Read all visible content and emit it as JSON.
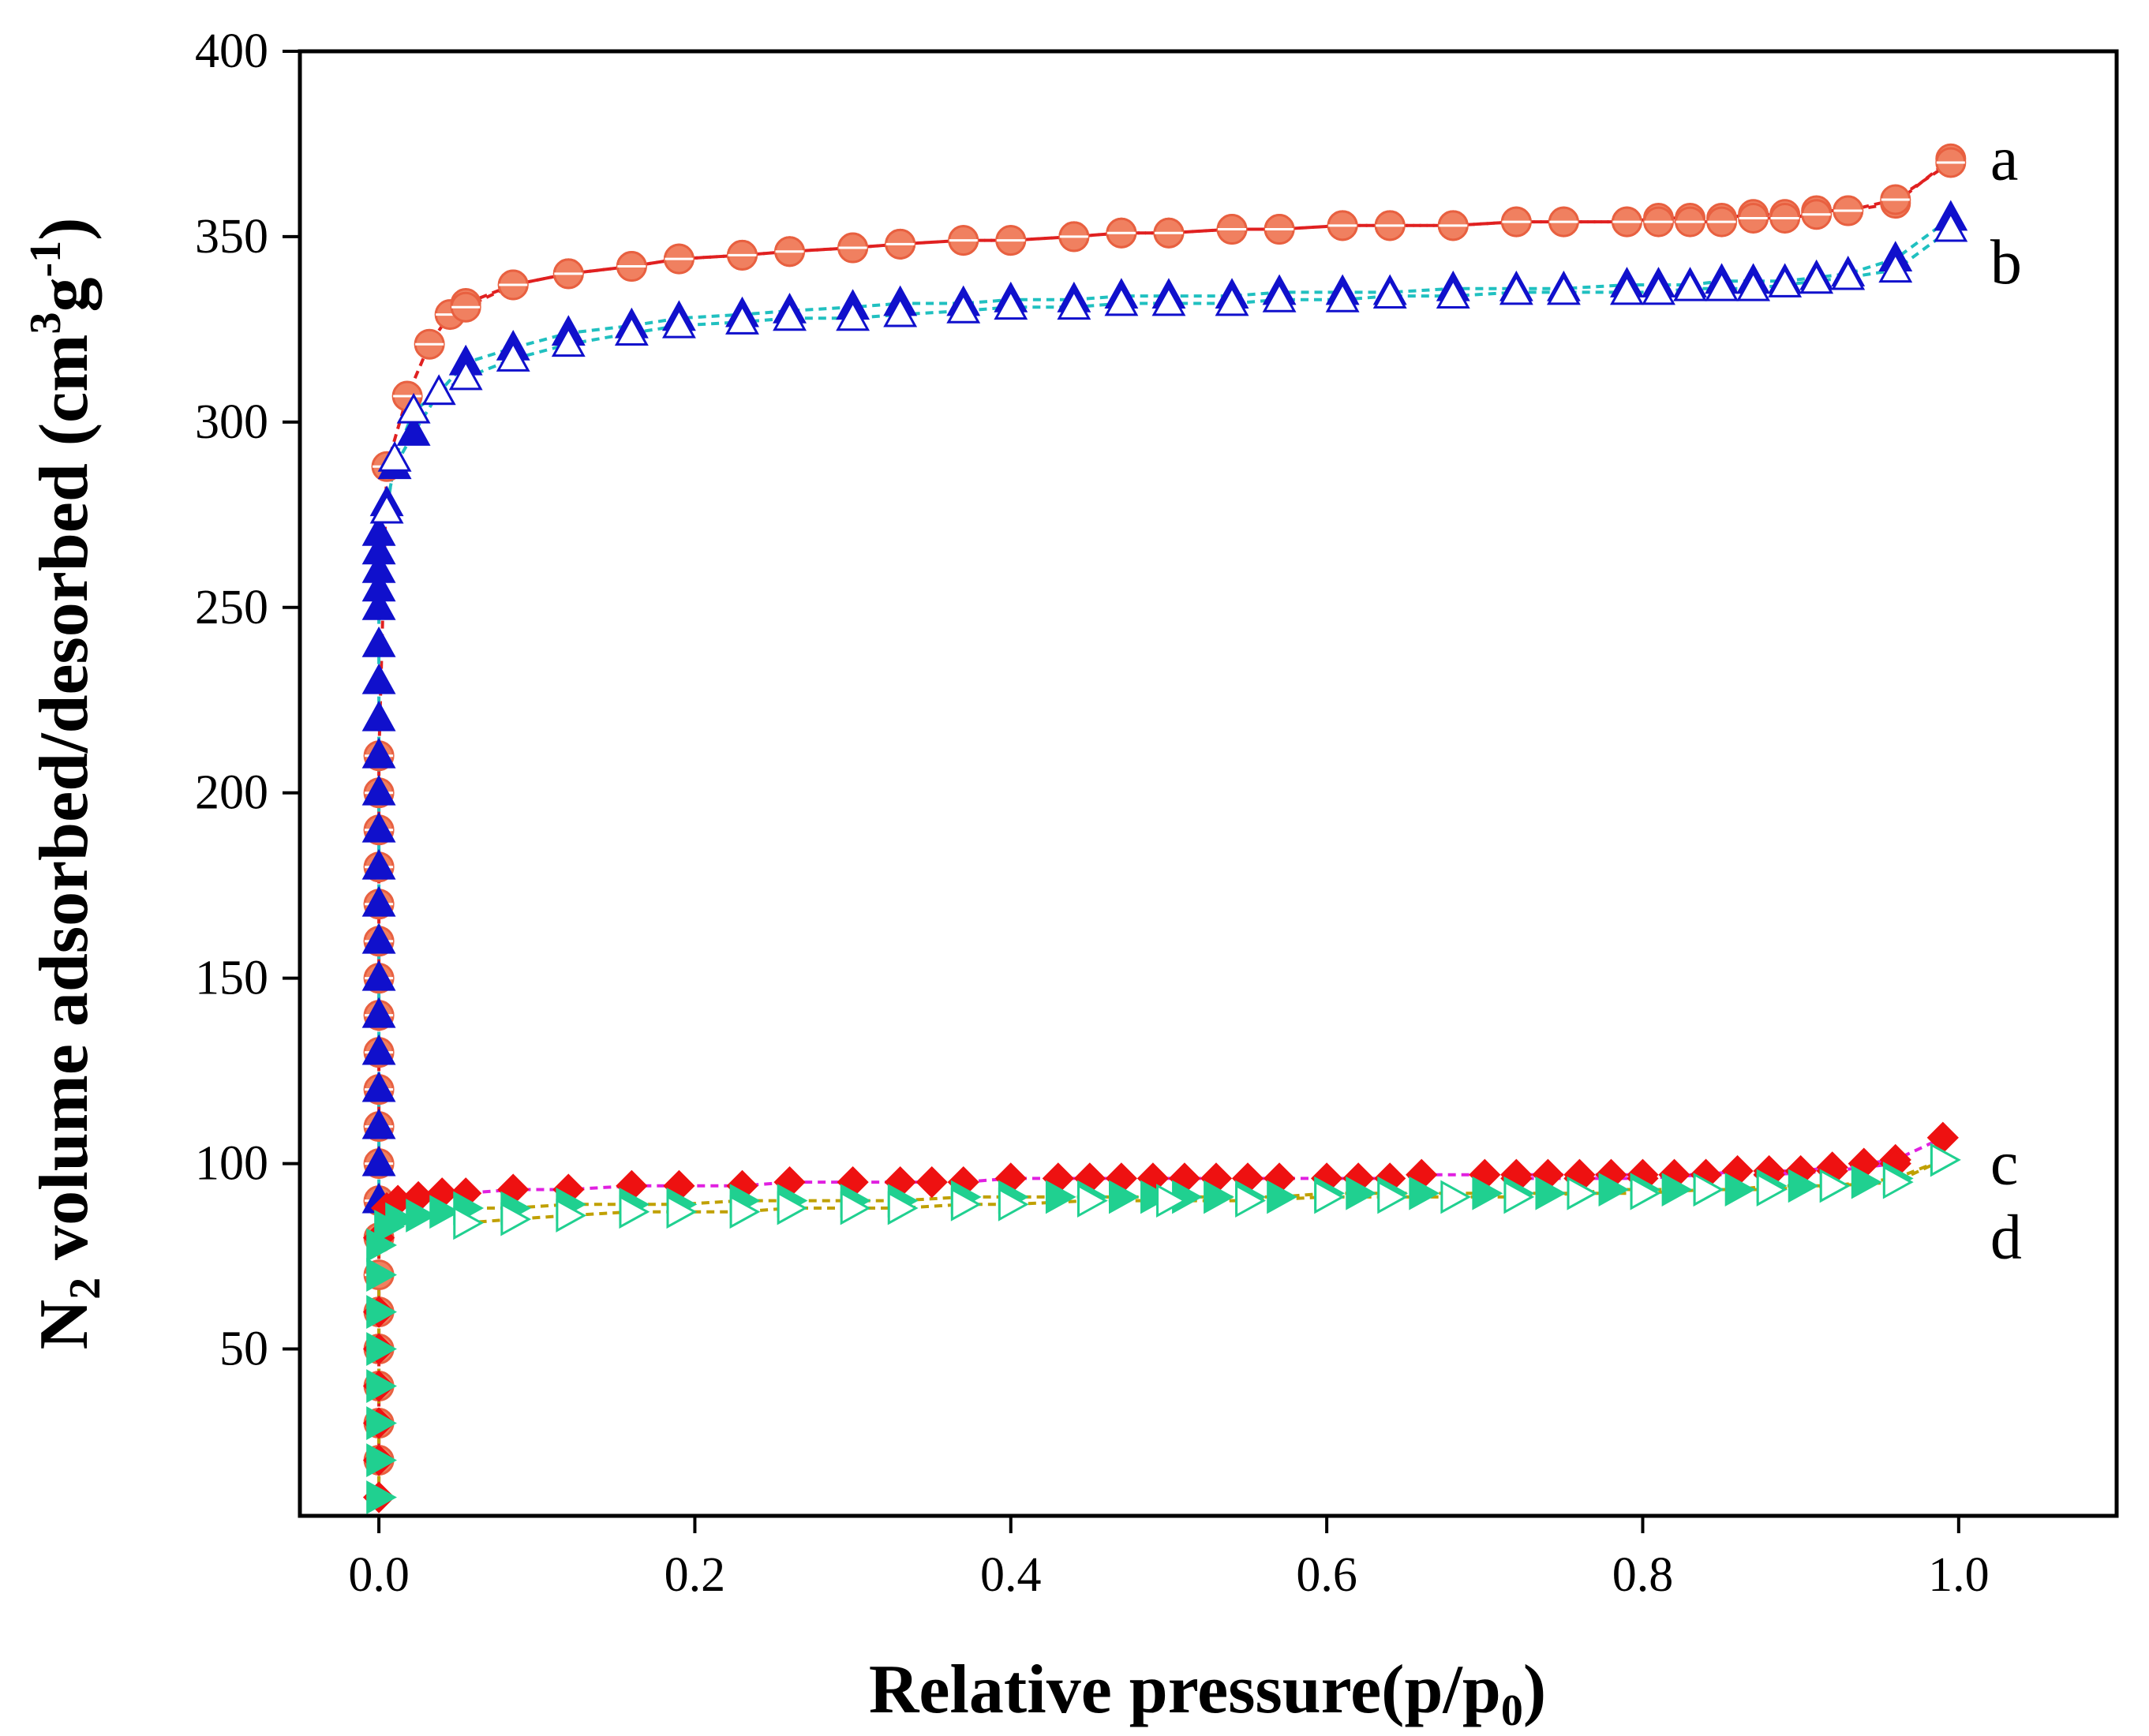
{
  "chart_data": {
    "type": "scatter",
    "title": "",
    "xlabel": {
      "main": "Relative pressure(p/p",
      "sub": "0",
      "end": ")"
    },
    "ylabel": {
      "n": "N",
      "n_sub": "2",
      "main": " volume adsorbed/desorbed (cm",
      "sup1": "3",
      "g": "g",
      "sup2": "-1",
      "end": ")"
    },
    "xlim": [
      -0.05,
      1.1
    ],
    "ylim": [
      5,
      400
    ],
    "xticks": [
      0.0,
      0.2,
      0.4,
      0.6,
      0.8,
      1.0
    ],
    "xtick_labels": [
      "0.0",
      "0.2",
      "0.4",
      "0.6",
      "0.8",
      "1.0"
    ],
    "yticks": [
      50,
      100,
      150,
      200,
      250,
      300,
      350,
      400
    ],
    "ytick_labels": [
      "50",
      "100",
      "150",
      "200",
      "250",
      "300",
      "350",
      "400"
    ],
    "series": [
      {
        "name": "a",
        "marker": "circle",
        "adsorption_color": "#f08060",
        "desorption_color": "#f08060",
        "line_color": "#e02020",
        "label_position": [
          1.02,
          371
        ],
        "adsorption": {
          "x": [
            0.0,
            0.0,
            0.0,
            0.0,
            0.0,
            0.0,
            0.0,
            0.0,
            0.0,
            0.0,
            0.0,
            0.0,
            0.0,
            0.0,
            0.0,
            0.0,
            0.0,
            0.0,
            0.0,
            0.0,
            0.005,
            0.018,
            0.032,
            0.045,
            0.055,
            0.085,
            0.12,
            0.16,
            0.19,
            0.23,
            0.26,
            0.3,
            0.33,
            0.37,
            0.4,
            0.44,
            0.47,
            0.5,
            0.54,
            0.57,
            0.61,
            0.64,
            0.68,
            0.72,
            0.75,
            0.79,
            0.81,
            0.83,
            0.85,
            0.87,
            0.89,
            0.91,
            0.93,
            0.96,
            0.995
          ],
          "y": [
            20,
            30,
            40,
            50,
            60,
            70,
            80,
            90,
            100,
            110,
            120,
            130,
            140,
            150,
            160,
            170,
            180,
            190,
            200,
            210,
            288,
            307,
            321,
            329,
            332,
            337,
            340,
            342,
            344,
            345,
            346,
            347,
            348,
            349,
            349,
            350,
            351,
            351,
            352,
            352,
            353,
            353,
            353,
            354,
            354,
            354,
            355,
            355,
            355,
            356,
            356,
            357,
            357,
            359,
            371
          ]
        },
        "desorption": {
          "x": [
            0.995,
            0.96,
            0.93,
            0.91,
            0.89,
            0.87,
            0.85,
            0.83,
            0.81,
            0.79,
            0.75,
            0.72,
            0.68,
            0.64,
            0.61,
            0.57,
            0.54,
            0.5,
            0.47,
            0.44,
            0.4,
            0.37,
            0.33,
            0.3,
            0.26,
            0.23,
            0.19,
            0.16,
            0.12,
            0.085,
            0.055
          ],
          "y": [
            370,
            360,
            357,
            356,
            355,
            355,
            354,
            354,
            354,
            354,
            354,
            354,
            353,
            353,
            353,
            352,
            352,
            351,
            351,
            350,
            349,
            349,
            348,
            347,
            346,
            345,
            344,
            342,
            340,
            337,
            331
          ]
        }
      },
      {
        "name": "b",
        "marker": "triangle-up",
        "adsorption_color": "#1010cc",
        "desorption_color": "#ffffff",
        "desorption_edge": "#1010cc",
        "line_color": "#20c0c0",
        "label_position": [
          1.02,
          343
        ],
        "adsorption": {
          "x": [
            0.0,
            0.0,
            0.0,
            0.0,
            0.0,
            0.0,
            0.0,
            0.0,
            0.0,
            0.0,
            0.0,
            0.0,
            0.0,
            0.0,
            0.0,
            0.0,
            0.0,
            0.0,
            0.0,
            0.0,
            0.0,
            0.005,
            0.01,
            0.022,
            0.038,
            0.055,
            0.085,
            0.12,
            0.16,
            0.19,
            0.23,
            0.26,
            0.3,
            0.33,
            0.37,
            0.4,
            0.44,
            0.47,
            0.5,
            0.54,
            0.57,
            0.61,
            0.64,
            0.68,
            0.72,
            0.75,
            0.79,
            0.81,
            0.83,
            0.85,
            0.87,
            0.89,
            0.91,
            0.93,
            0.96,
            0.995
          ],
          "y": [
            90,
            100,
            110,
            120,
            130,
            140,
            150,
            160,
            170,
            180,
            190,
            200,
            210,
            220,
            230,
            240,
            250,
            255,
            260,
            265,
            270,
            278,
            288,
            297,
            308,
            316,
            320,
            324,
            326,
            328,
            329,
            330,
            331,
            332,
            332,
            333,
            333,
            334,
            334,
            334,
            335,
            335,
            335,
            336,
            336,
            336,
            337,
            337,
            337,
            338,
            338,
            338,
            339,
            340,
            344,
            355
          ]
        },
        "desorption": {
          "x": [
            0.995,
            0.96,
            0.93,
            0.91,
            0.89,
            0.87,
            0.85,
            0.83,
            0.81,
            0.79,
            0.75,
            0.72,
            0.68,
            0.64,
            0.61,
            0.57,
            0.54,
            0.5,
            0.47,
            0.44,
            0.4,
            0.37,
            0.33,
            0.3,
            0.26,
            0.23,
            0.19,
            0.16,
            0.12,
            0.085,
            0.055,
            0.038,
            0.022,
            0.01,
            0.005
          ],
          "y": [
            352,
            341,
            339,
            338,
            337,
            336,
            336,
            336,
            335,
            335,
            335,
            335,
            334,
            334,
            333,
            333,
            332,
            332,
            332,
            331,
            331,
            330,
            329,
            328,
            328,
            327,
            326,
            324,
            321,
            317,
            312,
            308,
            303,
            290,
            276
          ]
        }
      },
      {
        "name": "c",
        "marker": "diamond",
        "adsorption_color": "#ee1111",
        "desorption_color": "#ee1111",
        "line_color": "#e020e0",
        "label_position": [
          1.02,
          100
        ],
        "adsorption": {
          "x": [
            0.0,
            0.0,
            0.0,
            0.0,
            0.0,
            0.0,
            0.0,
            0.005,
            0.012,
            0.025,
            0.04,
            0.055,
            0.085,
            0.12,
            0.16,
            0.19,
            0.23,
            0.26,
            0.3,
            0.33,
            0.35,
            0.37,
            0.4,
            0.43,
            0.45,
            0.47,
            0.49,
            0.51,
            0.53,
            0.55,
            0.57,
            0.6,
            0.62,
            0.64,
            0.66,
            0.7,
            0.72,
            0.74,
            0.76,
            0.78,
            0.8,
            0.82,
            0.84,
            0.86,
            0.88,
            0.9,
            0.92,
            0.94,
            0.96,
            0.99
          ],
          "y": [
            10,
            20,
            30,
            40,
            50,
            60,
            80,
            88,
            90,
            91,
            92,
            92,
            93,
            93,
            94,
            94,
            94,
            95,
            95,
            95,
            95,
            95,
            96,
            96,
            96,
            96,
            96,
            96,
            96,
            96,
            96,
            96,
            96,
            96,
            97,
            97,
            97,
            97,
            97,
            97,
            97,
            97,
            97,
            98,
            98,
            98,
            99,
            100,
            101,
            107
          ]
        },
        "desorption": {
          "x": [
            0.96,
            0.92,
            0.88,
            0.84,
            0.8,
            0.76,
            0.72
          ],
          "y": [
            100,
            98,
            97,
            97,
            96,
            96,
            96
          ]
        }
      },
      {
        "name": "d",
        "marker": "triangle-right",
        "adsorption_color": "#20d090",
        "desorption_color": "#ffffff",
        "desorption_edge": "#20d090",
        "line_color": "#c0a000",
        "label_position": [
          1.02,
          80
        ],
        "adsorption": {
          "x": [
            0.0,
            0.0,
            0.0,
            0.0,
            0.0,
            0.0,
            0.0,
            0.0,
            0.005,
            0.012,
            0.025,
            0.04,
            0.055,
            0.085,
            0.12,
            0.16,
            0.19,
            0.23,
            0.26,
            0.3,
            0.33,
            0.37,
            0.4,
            0.43,
            0.45,
            0.47,
            0.49,
            0.51,
            0.53,
            0.55,
            0.57,
            0.6,
            0.62,
            0.64,
            0.66,
            0.7,
            0.72,
            0.74,
            0.76,
            0.78,
            0.8,
            0.82,
            0.84,
            0.86,
            0.88,
            0.9,
            0.92,
            0.94,
            0.96,
            0.99
          ],
          "y": [
            10,
            20,
            30,
            40,
            50,
            60,
            70,
            78,
            83,
            85,
            86,
            87,
            88,
            88,
            89,
            89,
            89,
            90,
            90,
            90,
            90,
            91,
            91,
            91,
            91,
            91,
            91,
            91,
            91,
            91,
            91,
            92,
            92,
            92,
            92,
            92,
            92,
            92,
            92,
            93,
            93,
            93,
            93,
            93,
            94,
            94,
            94,
            95,
            96,
            101
          ]
        },
        "desorption": {
          "x": [
            0.99,
            0.96,
            0.92,
            0.88,
            0.84,
            0.8,
            0.76,
            0.72,
            0.68,
            0.64,
            0.6,
            0.55,
            0.5,
            0.45,
            0.4,
            0.37,
            0.33,
            0.3,
            0.26,
            0.23,
            0.19,
            0.16,
            0.12,
            0.085,
            0.055
          ],
          "y": [
            101,
            95,
            94,
            93,
            93,
            92,
            92,
            91,
            91,
            91,
            91,
            90,
            90,
            90,
            89,
            89,
            88,
            88,
            88,
            87,
            87,
            87,
            86,
            85,
            84
          ]
        }
      }
    ]
  }
}
